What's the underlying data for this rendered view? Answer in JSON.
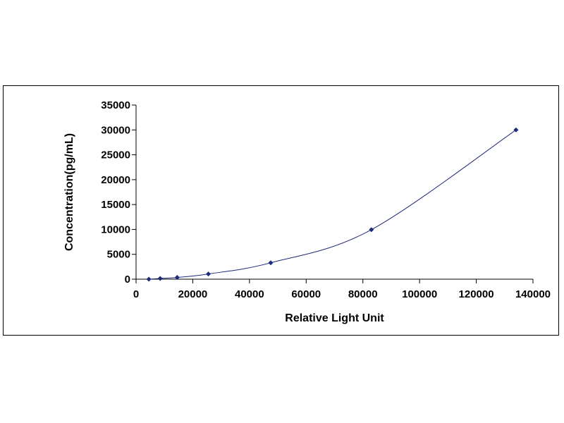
{
  "chart_data": {
    "type": "scatter",
    "title": "",
    "xlabel": "Relative Light Unit",
    "ylabel": "Concentration(pg/mL)",
    "xlim": [
      0,
      140000
    ],
    "ylim": [
      0,
      35000
    ],
    "x_ticks": [
      0,
      20000,
      40000,
      60000,
      80000,
      100000,
      120000,
      140000
    ],
    "y_ticks": [
      0,
      5000,
      10000,
      15000,
      20000,
      25000,
      30000,
      35000
    ],
    "x_tick_labels": [
      "0",
      "20000",
      "40000",
      "60000",
      "80000",
      "100000",
      "120000",
      "140000"
    ],
    "y_tick_labels": [
      "0",
      "5000",
      "10000",
      "15000",
      "20000",
      "25000",
      "30000",
      "35000"
    ],
    "grid": false,
    "legend": "none",
    "series": [
      {
        "marker": "diamond",
        "line": "smooth",
        "color": "#1f2a7a",
        "points": [
          {
            "x": 4500,
            "y": 0
          },
          {
            "x": 8500,
            "y": 150
          },
          {
            "x": 14500,
            "y": 350
          },
          {
            "x": 25500,
            "y": 1050
          },
          {
            "x": 47500,
            "y": 3300
          },
          {
            "x": 83000,
            "y": 9950
          },
          {
            "x": 134000,
            "y": 30000
          }
        ]
      }
    ]
  }
}
